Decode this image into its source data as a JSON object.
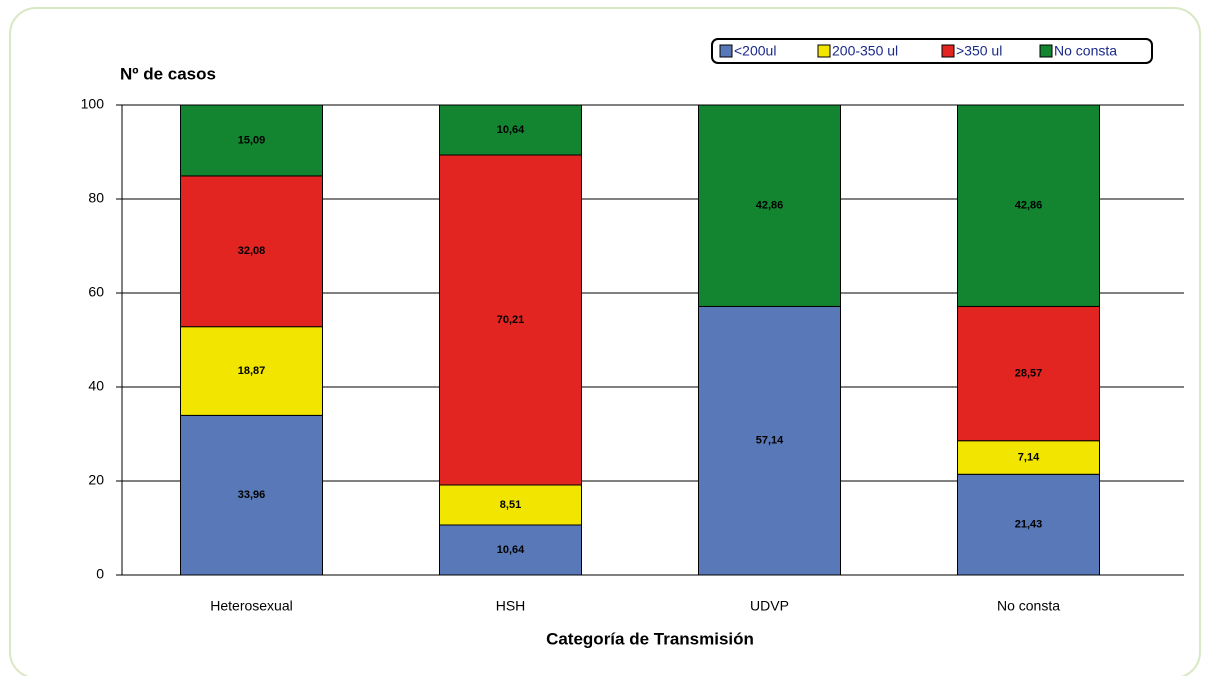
{
  "chart_data": {
    "type": "stacked_bar",
    "y_label": "Nº de casos",
    "x_label": "Categoría de Transmisión",
    "categories": [
      "Heterosexual",
      "HSH",
      "UDVP",
      "No consta"
    ],
    "series": [
      {
        "name": "<200ul",
        "color": "#5878b8",
        "values": [
          33.96,
          10.64,
          57.14,
          21.43
        ],
        "value_labels": [
          "33,96",
          "10,64",
          "57,14",
          "21,43"
        ]
      },
      {
        "name": "200-350 ul",
        "color": "#f2e500",
        "values": [
          18.87,
          8.51,
          null,
          7.14
        ],
        "value_labels": [
          "18,87",
          "8,51",
          null,
          "7,14"
        ]
      },
      {
        "name": ">350 ul",
        "color": "#e32522",
        "values": [
          32.08,
          70.21,
          null,
          28.57
        ],
        "value_labels": [
          "32,08",
          "70,21",
          null,
          "28,57"
        ]
      },
      {
        "name": "No consta",
        "color": "#138531",
        "values": [
          15.09,
          10.64,
          42.86,
          42.86
        ],
        "value_labels": [
          "15,09",
          "10,64",
          "42,86",
          "42,86"
        ]
      }
    ],
    "ylim": [
      0,
      100
    ],
    "yticks": [
      0,
      20,
      40,
      60,
      80,
      100
    ],
    "grid": true
  }
}
